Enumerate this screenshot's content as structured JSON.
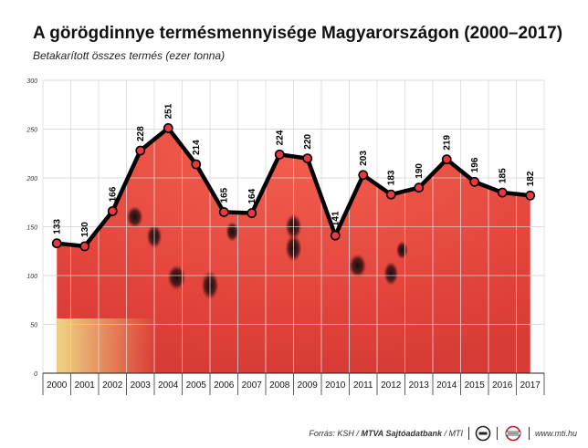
{
  "title": "A görögdinnye termésmennyisége Magyarországon (2000–2017)",
  "subtitle": "Betakarított összes termés (ezer tonna)",
  "footer": {
    "source_prefix": "Forrás: KSH /",
    "source_bold": "MTVA Sajtóadatbank",
    "source_suffix": "/ MTI",
    "url": "www.mti.hu"
  },
  "colors": {
    "line": "#000000",
    "marker_fill": "#e8393f",
    "flesh": "#e6483f",
    "rind": "#ead27a"
  },
  "chart_data": {
    "type": "line",
    "title": "A görögdinnye termésmennyisége Magyarországon (2000–2017)",
    "subtitle": "Betakarított összes termés (ezer tonna)",
    "xlabel": "",
    "ylabel": "",
    "categories": [
      "2000",
      "2001",
      "2002",
      "2003",
      "2004",
      "2005",
      "2006",
      "2007",
      "2008",
      "2009",
      "2010",
      "2011",
      "2012",
      "2013",
      "2014",
      "2015",
      "2016",
      "2017"
    ],
    "values": [
      133,
      130,
      166,
      228,
      251,
      214,
      165,
      164,
      224,
      220,
      141,
      203,
      183,
      190,
      219,
      196,
      185,
      182
    ],
    "ylim": [
      0,
      300
    ],
    "yticks": [
      0,
      50,
      100,
      150,
      200,
      250,
      300
    ],
    "grid": true,
    "legend": "none"
  }
}
